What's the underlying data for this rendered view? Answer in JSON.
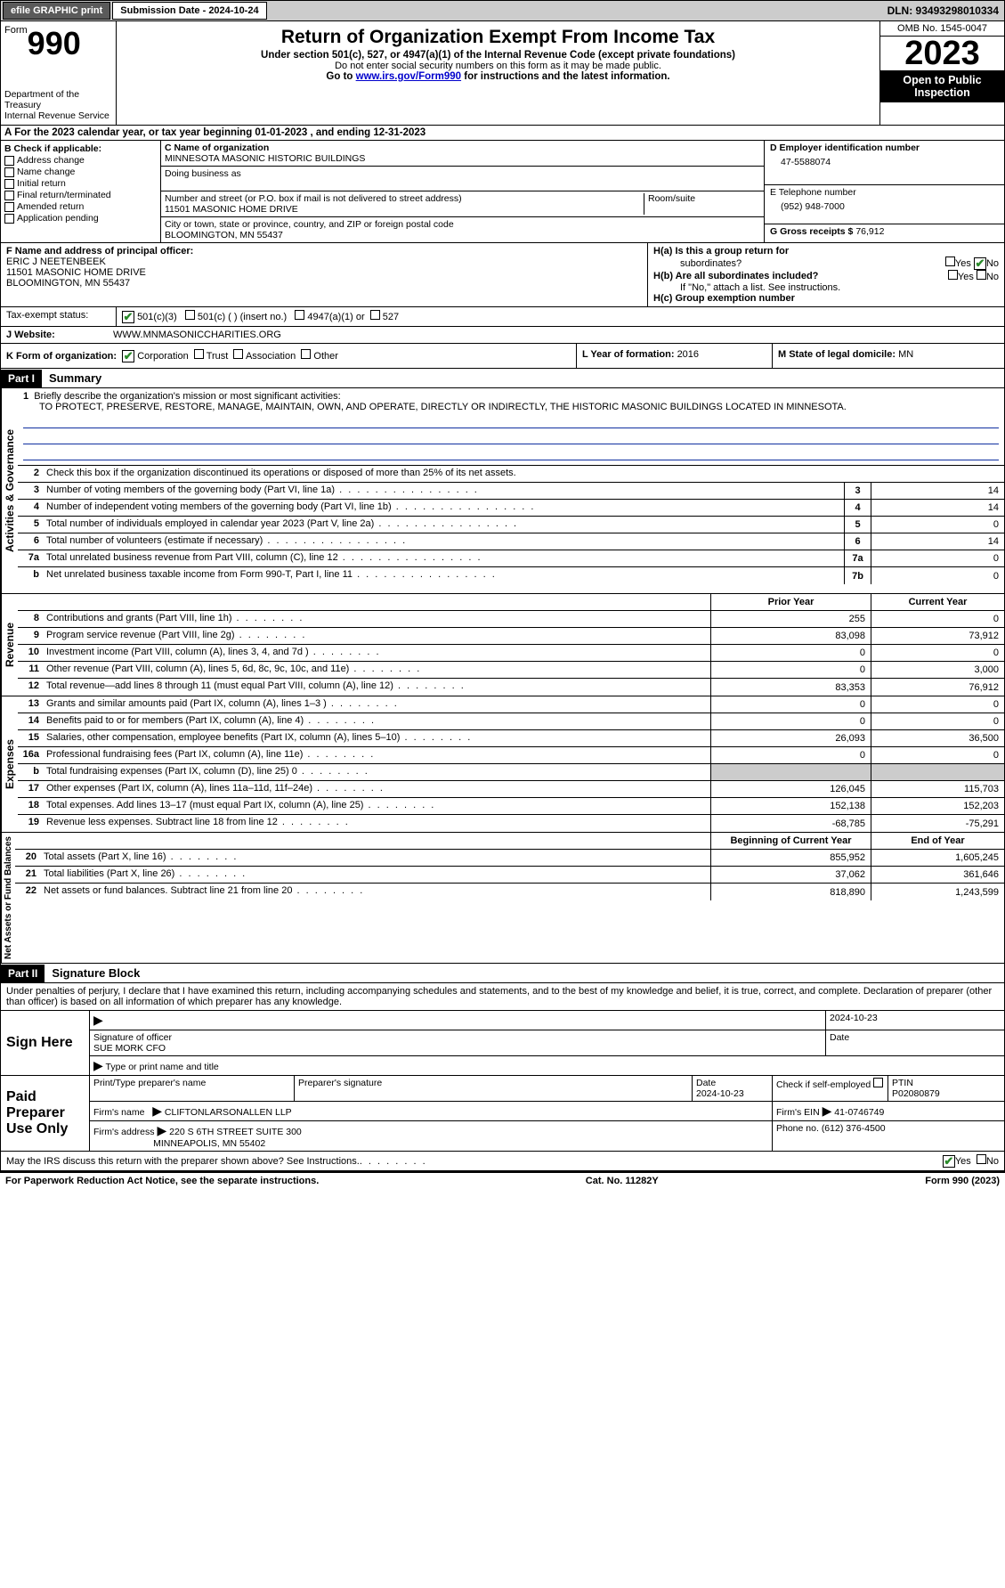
{
  "topbar": {
    "efile_label": "efile GRAPHIC print",
    "submission_label": "Submission Date - 2024-10-24",
    "dln": "DLN: 93493298010334"
  },
  "header": {
    "form_word": "Form",
    "form_number": "990",
    "title": "Return of Organization Exempt From Income Tax",
    "subtitle": "Under section 501(c), 527, or 4947(a)(1) of the Internal Revenue Code (except private foundations)",
    "ssn_warning": "Do not enter social security numbers on this form as it may be made public.",
    "goto_prefix": "Go to ",
    "goto_link": "www.irs.gov/Form990",
    "goto_suffix": " for instructions and the latest information.",
    "dept1": "Department of the Treasury",
    "dept2": "Internal Revenue Service",
    "omb": "OMB No. 1545-0047",
    "year": "2023",
    "open1": "Open to Public",
    "open2": "Inspection"
  },
  "row_a": "A For the 2023 calendar year, or tax year beginning 01-01-2023   , and ending 12-31-2023",
  "section_b": {
    "header": "B Check if applicable:",
    "items": [
      "Address change",
      "Name change",
      "Initial return",
      "Final return/terminated",
      "Amended return",
      "Application pending"
    ]
  },
  "section_c": {
    "name_label": "C Name of organization",
    "name": "MINNESOTA MASONIC HISTORIC BUILDINGS",
    "dba_label": "Doing business as",
    "street_label": "Number and street (or P.O. box if mail is not delivered to street address)",
    "street": "11501 MASONIC HOME DRIVE",
    "room_label": "Room/suite",
    "city_label": "City or town, state or province, country, and ZIP or foreign postal code",
    "city": "BLOOMINGTON, MN  55437"
  },
  "section_d": {
    "label": "D Employer identification number",
    "value": "47-5588074"
  },
  "section_e": {
    "label": "E Telephone number",
    "value": "(952) 948-7000"
  },
  "section_g": {
    "label": "G Gross receipts $",
    "value": "76,912"
  },
  "section_f": {
    "label": "F Name and address of principal officer:",
    "name": "ERIC J NEETENBEEK",
    "street": "11501 MASONIC HOME DRIVE",
    "city": "BLOOMINGTON, MN  55437"
  },
  "section_h": {
    "ha_label": "H(a)  Is this a group return for",
    "ha_label2": "subordinates?",
    "hb_label": "H(b)  Are all subordinates included?",
    "hb_note": "If \"No,\" attach a list. See instructions.",
    "hc_label": "H(c)  Group exemption number",
    "yes": "Yes",
    "no": "No",
    "ha_answer": "No"
  },
  "row_i": {
    "label": "Tax-exempt status:",
    "opt1": "501(c)(3)",
    "opt2": "501(c) (  ) (insert no.)",
    "opt3": "4947(a)(1) or",
    "opt4": "527"
  },
  "row_j": {
    "label": "J   Website:",
    "value": "WWW.MNMASONICCHARITIES.ORG"
  },
  "row_k": {
    "label": "K Form of organization:",
    "opts": [
      "Corporation",
      "Trust",
      "Association",
      "Other"
    ],
    "l_label": "L Year of formation: ",
    "l_value": "2016",
    "m_label": "M State of legal domicile: ",
    "m_value": "MN"
  },
  "part1": {
    "header": "Part I",
    "title": "Summary",
    "line1_label": "Briefly describe the organization's mission or most significant activities:",
    "mission": "TO PROTECT, PRESERVE, RESTORE, MANAGE, MAINTAIN, OWN, AND OPERATE, DIRECTLY OR INDIRECTLY, THE HISTORIC MASONIC BUILDINGS LOCATED IN MINNESOTA.",
    "line2": "Check this box       if the organization discontinued its operations or disposed of more than 25% of its net assets.",
    "lines_gov": [
      {
        "n": "3",
        "t": "Number of voting members of the governing body (Part VI, line 1a)",
        "box": "3",
        "v": "14"
      },
      {
        "n": "4",
        "t": "Number of independent voting members of the governing body (Part VI, line 1b)",
        "box": "4",
        "v": "14"
      },
      {
        "n": "5",
        "t": "Total number of individuals employed in calendar year 2023 (Part V, line 2a)",
        "box": "5",
        "v": "0"
      },
      {
        "n": "6",
        "t": "Total number of volunteers (estimate if necessary)",
        "box": "6",
        "v": "14"
      },
      {
        "n": "7a",
        "t": "Total unrelated business revenue from Part VIII, column (C), line 12",
        "box": "7a",
        "v": "0"
      },
      {
        "n": "b",
        "t": "Net unrelated business taxable income from Form 990-T, Part I, line 11",
        "box": "7b",
        "v": "0"
      }
    ],
    "col_prior": "Prior Year",
    "col_current": "Current Year",
    "lines_rev": [
      {
        "n": "8",
        "t": "Contributions and grants (Part VIII, line 1h)",
        "p": "255",
        "c": "0"
      },
      {
        "n": "9",
        "t": "Program service revenue (Part VIII, line 2g)",
        "p": "83,098",
        "c": "73,912"
      },
      {
        "n": "10",
        "t": "Investment income (Part VIII, column (A), lines 3, 4, and 7d )",
        "p": "0",
        "c": "0"
      },
      {
        "n": "11",
        "t": "Other revenue (Part VIII, column (A), lines 5, 6d, 8c, 9c, 10c, and 11e)",
        "p": "0",
        "c": "3,000"
      },
      {
        "n": "12",
        "t": "Total revenue—add lines 8 through 11 (must equal Part VIII, column (A), line 12)",
        "p": "83,353",
        "c": "76,912"
      }
    ],
    "lines_exp": [
      {
        "n": "13",
        "t": "Grants and similar amounts paid (Part IX, column (A), lines 1–3 )",
        "p": "0",
        "c": "0"
      },
      {
        "n": "14",
        "t": "Benefits paid to or for members (Part IX, column (A), line 4)",
        "p": "0",
        "c": "0"
      },
      {
        "n": "15",
        "t": "Salaries, other compensation, employee benefits (Part IX, column (A), lines 5–10)",
        "p": "26,093",
        "c": "36,500"
      },
      {
        "n": "16a",
        "t": "Professional fundraising fees (Part IX, column (A), line 11e)",
        "p": "0",
        "c": "0"
      },
      {
        "n": "b",
        "t": "Total fundraising expenses (Part IX, column (D), line 25) 0",
        "p": "",
        "c": "",
        "grey": true
      },
      {
        "n": "17",
        "t": "Other expenses (Part IX, column (A), lines 11a–11d, 11f–24e)",
        "p": "126,045",
        "c": "115,703"
      },
      {
        "n": "18",
        "t": "Total expenses. Add lines 13–17 (must equal Part IX, column (A), line 25)",
        "p": "152,138",
        "c": "152,203"
      },
      {
        "n": "19",
        "t": "Revenue less expenses. Subtract line 18 from line 12",
        "p": "-68,785",
        "c": "-75,291"
      }
    ],
    "col_begin": "Beginning of Current Year",
    "col_end": "End of Year",
    "lines_net": [
      {
        "n": "20",
        "t": "Total assets (Part X, line 16)",
        "p": "855,952",
        "c": "1,605,245"
      },
      {
        "n": "21",
        "t": "Total liabilities (Part X, line 26)",
        "p": "37,062",
        "c": "361,646"
      },
      {
        "n": "22",
        "t": "Net assets or fund balances. Subtract line 21 from line 20",
        "p": "818,890",
        "c": "1,243,599"
      }
    ],
    "vert_gov": "Activities & Governance",
    "vert_rev": "Revenue",
    "vert_exp": "Expenses",
    "vert_net": "Net Assets or Fund Balances"
  },
  "part2": {
    "header": "Part II",
    "title": "Signature Block",
    "penalties": "Under penalties of perjury, I declare that I have examined this return, including accompanying schedules and statements, and to the best of my knowledge and belief, it is true, correct, and complete. Declaration of preparer (other than officer) is based on all information of which preparer has any knowledge."
  },
  "sign_here": {
    "label": "Sign Here",
    "date": "2024-10-23",
    "sig_label": "Signature of officer",
    "name": "SUE MORK  CFO",
    "type_label": "Type or print name and title",
    "date_label": "Date"
  },
  "preparer": {
    "label1": "Paid",
    "label2": "Preparer",
    "label3": "Use Only",
    "col_name": "Print/Type preparer's name",
    "col_sig": "Preparer's signature",
    "col_date": "Date",
    "date": "2024-10-23",
    "check_label": "Check         if self-employed",
    "ptin_label": "PTIN",
    "ptin": "P02080879",
    "firm_name_label": "Firm's name",
    "firm_name": "CLIFTONLARSONALLEN LLP",
    "firm_ein_label": "Firm's EIN",
    "firm_ein": "41-0746749",
    "firm_addr_label": "Firm's address",
    "firm_addr1": "220 S 6TH STREET SUITE 300",
    "firm_addr2": "MINNEAPOLIS, MN  55402",
    "phone_label": "Phone no.",
    "phone": "(612) 376-4500"
  },
  "footer": {
    "discuss": "May the IRS discuss this return with the preparer shown above? See Instructions.",
    "yes": "Yes",
    "no": "No",
    "paperwork": "For Paperwork Reduction Act Notice, see the separate instructions.",
    "catno": "Cat. No. 11282Y",
    "formno": "Form 990 (2023)"
  }
}
